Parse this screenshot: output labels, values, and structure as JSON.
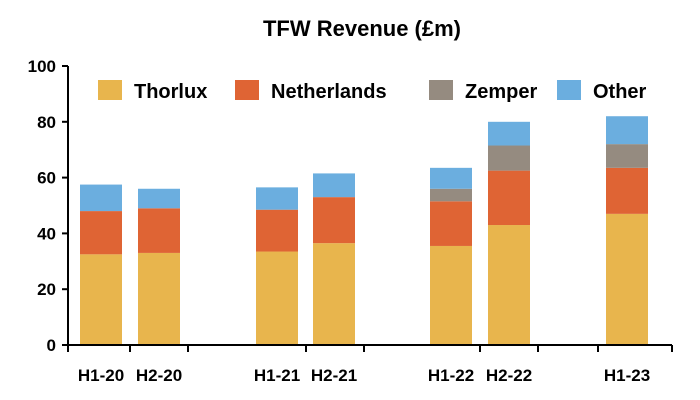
{
  "chart_data": {
    "type": "bar",
    "stacked": true,
    "title": "TFW Revenue (£m)",
    "xlabel": "",
    "ylabel": "",
    "ylim": [
      0,
      100
    ],
    "yticks": [
      0,
      20,
      40,
      60,
      80,
      100
    ],
    "grid": false,
    "legend_position": "top",
    "categories": [
      "H1-20",
      "H2-20",
      "H1-21",
      "H2-21",
      "H1-22",
      "H2-22",
      "H1-23"
    ],
    "series": [
      {
        "name": "Thorlux",
        "color": "#E8B54D",
        "values": [
          32.5,
          33.0,
          33.5,
          36.5,
          35.5,
          43.0,
          47.0
        ]
      },
      {
        "name": "Netherlands",
        "color": "#DF6434",
        "values": [
          15.5,
          16.0,
          15.0,
          16.5,
          16.0,
          19.5,
          16.5
        ]
      },
      {
        "name": "Zemper",
        "color": "#958B80",
        "values": [
          0,
          0,
          0,
          0,
          4.5,
          9.0,
          8.5
        ]
      },
      {
        "name": "Other",
        "color": "#6BAEDF",
        "values": [
          9.5,
          7.0,
          8.0,
          8.5,
          7.5,
          8.5,
          10.0
        ]
      }
    ]
  }
}
